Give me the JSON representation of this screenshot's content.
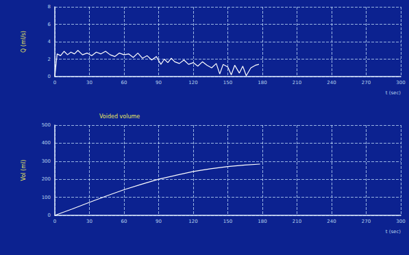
{
  "chart_data": [
    {
      "type": "line",
      "ylabel": "Q (ml/s)",
      "xlabel": "t (sec)",
      "color": "#ffffff",
      "grid": true,
      "x": [
        0,
        2,
        5,
        8,
        11,
        14,
        17,
        20,
        24,
        28,
        32,
        36,
        40,
        44,
        48,
        52,
        56,
        60,
        64,
        68,
        72,
        76,
        80,
        84,
        88,
        92,
        95,
        98,
        101,
        104,
        108,
        112,
        116,
        120,
        124,
        128,
        132,
        136,
        140,
        143,
        146,
        150,
        153,
        156,
        160,
        163,
        166,
        170,
        174,
        177
      ],
      "values": [
        0,
        2.6,
        2.4,
        2.9,
        2.5,
        2.8,
        2.6,
        3.0,
        2.5,
        2.7,
        2.4,
        2.8,
        2.6,
        2.9,
        2.5,
        2.3,
        2.7,
        2.5,
        2.6,
        2.2,
        2.7,
        2.1,
        2.4,
        1.9,
        2.3,
        1.4,
        2.0,
        1.6,
        2.1,
        1.7,
        1.5,
        1.9,
        1.4,
        1.6,
        1.2,
        1.7,
        1.3,
        1.0,
        1.5,
        0.3,
        1.4,
        1.1,
        0.2,
        1.3,
        0.4,
        1.2,
        0.1,
        1.0,
        1.3,
        1.4
      ],
      "xlim": [
        0,
        300
      ],
      "xticks": [
        0,
        30,
        60,
        90,
        120,
        150,
        180,
        210,
        240,
        270,
        300
      ],
      "ylim": [
        0,
        8
      ],
      "yticks": [
        0,
        2,
        4,
        6,
        8
      ]
    },
    {
      "type": "line",
      "title": "Voided volume",
      "ylabel": "Vol (ml)",
      "xlabel": "t (sec)",
      "color": "#ffffff",
      "grid": true,
      "x": [
        0,
        15,
        30,
        45,
        60,
        75,
        90,
        105,
        120,
        135,
        150,
        165,
        178
      ],
      "values": [
        0,
        35,
        72,
        108,
        142,
        172,
        200,
        222,
        243,
        258,
        270,
        279,
        284
      ],
      "xlim": [
        0,
        300
      ],
      "xticks": [
        0,
        30,
        60,
        90,
        120,
        150,
        180,
        210,
        240,
        270,
        300
      ],
      "ylim": [
        0,
        500
      ],
      "yticks": [
        0,
        100,
        200,
        300,
        400,
        500
      ]
    }
  ]
}
